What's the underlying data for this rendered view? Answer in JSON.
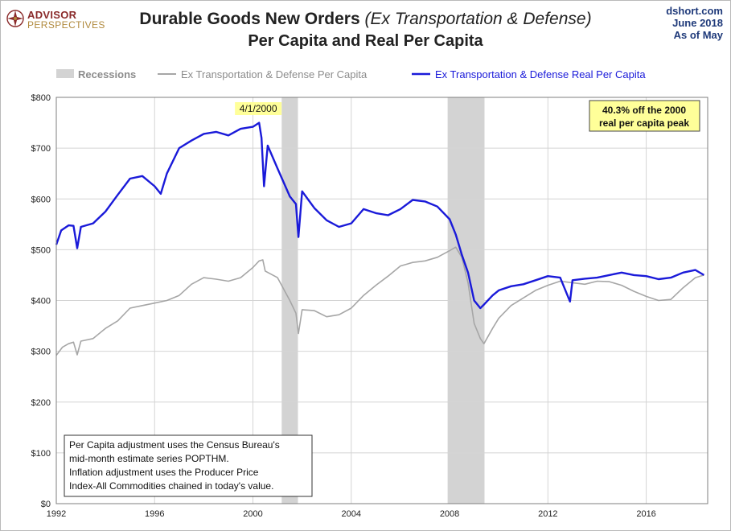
{
  "brand": {
    "top": "ADVISOR",
    "bottom": "PERSPECTIVES"
  },
  "title_main": "Durable Goods New Orders ",
  "title_sub": "(Ex Transportation & Defense)",
  "title_line2": "Per Capita and Real Per Capita",
  "source": [
    "dshort.com",
    "June 2018",
    "As of May"
  ],
  "colors": {
    "recession": "#d3d3d3",
    "nominal": "#a6a6a6",
    "real": "#1a1ad9",
    "callout_bg": "#ffff99"
  },
  "legend": [
    {
      "label": "Recessions",
      "kind": "band"
    },
    {
      "label": "Ex Transportation & Defense Per Capita",
      "kind": "gray-line"
    },
    {
      "label": "Ex Transportation & Defense Real Per Capita",
      "kind": "blue-line"
    }
  ],
  "peak_label": "4/1/2000",
  "callout": [
    "40.3% off the 2000",
    "real per capita peak"
  ],
  "note": [
    "Per Capita adjustment uses the Census Bureau's",
    "mid-month estimate series POPTHM.",
    "Inflation adjustment uses the Producer Price",
    "Index-All Commodities chained in today's value."
  ],
  "chart_data": {
    "type": "line",
    "title": "Durable Goods New Orders (Ex Transportation & Defense) Per Capita and Real Per Capita",
    "xlim": [
      1992,
      2018.5
    ],
    "ylim": [
      0,
      800
    ],
    "x_ticks": [
      1992,
      1996,
      2000,
      2004,
      2008,
      2012,
      2016
    ],
    "x_tick_labels": [
      "1992",
      "1996",
      "2000",
      "2004",
      "2008",
      "2012",
      "2016"
    ],
    "y_ticks": [
      0,
      100,
      200,
      300,
      400,
      500,
      600,
      700,
      800
    ],
    "y_tick_labels": [
      "$0",
      "$100",
      "$200",
      "$300",
      "$400",
      "$500",
      "$600",
      "$700",
      "$800"
    ],
    "grid": true,
    "recessions": [
      [
        2001.17,
        2001.83
      ],
      [
        2007.92,
        2009.42
      ]
    ],
    "series": [
      {
        "name": "Ex Transportation & Defense Per Capita",
        "x": [
          1992.0,
          1992.25,
          1992.5,
          1992.7,
          1992.85,
          1993.0,
          1993.5,
          1994.0,
          1994.5,
          1995.0,
          1995.5,
          1996.0,
          1996.5,
          1997.0,
          1997.5,
          1998.0,
          1998.5,
          1999.0,
          1999.5,
          2000.0,
          2000.25,
          2000.4,
          2000.5,
          2001.0,
          2001.5,
          2001.75,
          2001.85,
          2002.0,
          2002.5,
          2003.0,
          2003.5,
          2004.0,
          2004.5,
          2005.0,
          2005.5,
          2006.0,
          2006.5,
          2007.0,
          2007.5,
          2008.0,
          2008.25,
          2008.5,
          2008.75,
          2009.0,
          2009.25,
          2009.4,
          2009.75,
          2010.0,
          2010.5,
          2011.0,
          2011.5,
          2012.0,
          2012.5,
          2013.0,
          2013.5,
          2014.0,
          2014.5,
          2015.0,
          2015.5,
          2016.0,
          2016.5,
          2017.0,
          2017.5,
          2018.0,
          2018.35
        ],
        "values": [
          292,
          308,
          315,
          318,
          293,
          320,
          325,
          345,
          360,
          385,
          390,
          395,
          400,
          410,
          432,
          445,
          442,
          438,
          445,
          465,
          478,
          480,
          458,
          445,
          400,
          375,
          335,
          382,
          380,
          368,
          372,
          385,
          410,
          430,
          448,
          468,
          475,
          478,
          485,
          498,
          505,
          485,
          435,
          355,
          325,
          315,
          345,
          365,
          390,
          405,
          420,
          430,
          438,
          435,
          432,
          438,
          437,
          430,
          418,
          408,
          400,
          402,
          425,
          445,
          450
        ]
      },
      {
        "name": "Ex Transportation & Defense Real Per Capita",
        "x": [
          1992.0,
          1992.2,
          1992.5,
          1992.7,
          1992.85,
          1993.0,
          1993.5,
          1994.0,
          1994.5,
          1995.0,
          1995.5,
          1996.0,
          1996.25,
          1996.5,
          1997.0,
          1997.5,
          1998.0,
          1998.5,
          1999.0,
          1999.5,
          2000.0,
          2000.25,
          2000.35,
          2000.45,
          2000.6,
          2001.0,
          2001.5,
          2001.75,
          2001.85,
          2002.0,
          2002.5,
          2003.0,
          2003.5,
          2004.0,
          2004.5,
          2005.0,
          2005.5,
          2006.0,
          2006.5,
          2007.0,
          2007.5,
          2008.0,
          2008.25,
          2008.5,
          2008.75,
          2009.0,
          2009.25,
          2009.4,
          2009.75,
          2010.0,
          2010.5,
          2011.0,
          2011.5,
          2012.0,
          2012.5,
          2012.9,
          2013.0,
          2013.5,
          2014.0,
          2014.5,
          2015.0,
          2015.5,
          2016.0,
          2016.5,
          2017.0,
          2017.5,
          2018.0,
          2018.35
        ],
        "values": [
          510,
          538,
          548,
          547,
          503,
          545,
          552,
          575,
          608,
          640,
          645,
          625,
          610,
          650,
          700,
          715,
          728,
          732,
          725,
          738,
          742,
          750,
          720,
          625,
          705,
          660,
          605,
          590,
          525,
          615,
          582,
          558,
          545,
          552,
          580,
          572,
          568,
          580,
          598,
          595,
          585,
          560,
          530,
          490,
          455,
          400,
          385,
          392,
          410,
          420,
          428,
          432,
          440,
          448,
          445,
          398,
          440,
          443,
          445,
          450,
          455,
          450,
          448,
          442,
          445,
          455,
          460,
          450
        ]
      }
    ]
  }
}
